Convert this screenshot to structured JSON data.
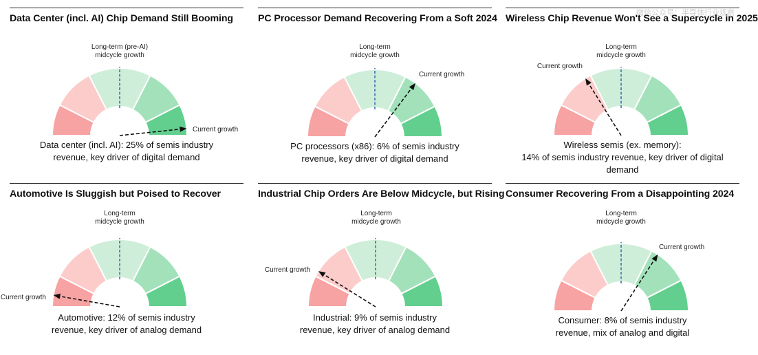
{
  "watermark": "微信公众号：半导体行业观察",
  "colors": [
    "#f7a2a3",
    "#fccccb",
    "#cfeed9",
    "#a3e1bb",
    "#62cf8f"
  ],
  "chart_data": [
    {
      "type": "gauge",
      "title": "Data Center (incl. AI) Chip Demand Still Booming",
      "reference_label": [
        "Long-term (pre-AI)",
        "midcycle growth"
      ],
      "pointer_label": "Current growth",
      "pointer_angle_deg": 6,
      "caption": [
        "Data center (incl. AI): 25% of semis industry",
        "revenue, key driver of digital demand"
      ],
      "share_pct": 25
    },
    {
      "type": "gauge",
      "title": "PC Processor Demand Recovering From a Soft 2024",
      "reference_label": [
        "Long-term",
        "midcycle growth"
      ],
      "pointer_label": "Current growth",
      "pointer_angle_deg": 53,
      "caption": [
        "PC processors (x86): 6% of semis industry",
        "revenue, key driver of digital demand"
      ],
      "share_pct": 6
    },
    {
      "type": "gauge",
      "title": "Wireless Chip Revenue Won't See a Supercycle in 2025",
      "reference_label": [
        "Long-term",
        "midcycle growth"
      ],
      "pointer_label": "Current growth",
      "pointer_angle_deg": 122,
      "caption": [
        "Wireless semis (ex. memory):",
        "14% of semis industry revenue, key driver of digital demand"
      ],
      "share_pct": 14
    },
    {
      "type": "gauge",
      "title": "Automotive Is Sluggish but Poised to Recover",
      "reference_label": [
        "Long-term",
        "midcycle growth"
      ],
      "pointer_label": "Current growth",
      "pointer_angle_deg": 170,
      "caption": [
        "Automotive: 12% of semis industry",
        "revenue, key driver of analog demand"
      ],
      "share_pct": 12
    },
    {
      "type": "gauge",
      "title": "Industrial Chip Orders Are Below Midcycle, but Rising",
      "reference_label": [
        "Long-term",
        "midcycle growth"
      ],
      "pointer_label": "Current growth",
      "pointer_angle_deg": 148,
      "caption": [
        "Industrial: 9% of semis industry",
        "revenue, key driver of analog demand"
      ],
      "share_pct": 9
    },
    {
      "type": "gauge",
      "title": "Consumer Recovering From a Disappointing 2024",
      "reference_label": [
        "Long-term",
        "midcycle growth"
      ],
      "pointer_label": "Current growth",
      "pointer_angle_deg": 57,
      "caption": [
        "Consumer: 8% of semis industry",
        "revenue, mix of analog and digital"
      ],
      "share_pct": 8
    }
  ]
}
